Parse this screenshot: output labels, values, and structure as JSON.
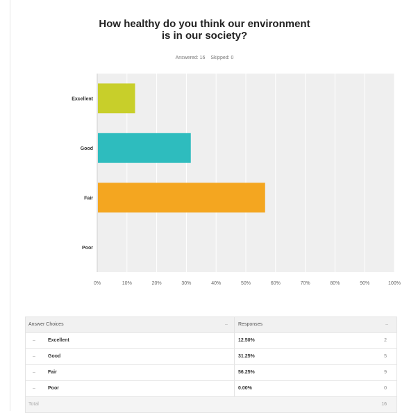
{
  "question": {
    "title_line1": "How healthy do you think our environment",
    "title_line2": "is in our society?",
    "answered": "Answered: 16",
    "skipped": "Skipped: 0"
  },
  "chart_data": {
    "type": "bar",
    "orientation": "horizontal",
    "categories": [
      "Excellent",
      "Good",
      "Fair",
      "Poor"
    ],
    "values": [
      12.5,
      31.25,
      56.25,
      0
    ],
    "xlim": [
      0,
      100
    ],
    "xticks": [
      "0%",
      "10%",
      "20%",
      "30%",
      "40%",
      "50%",
      "60%",
      "70%",
      "80%",
      "90%",
      "100%"
    ],
    "colors": [
      "#c8cf2a",
      "#2ebcbe",
      "#f4a620",
      "#aaaaaa"
    ],
    "grid": true,
    "plot_background": "#efefef"
  },
  "table": {
    "header_choice": "Answer Choices",
    "header_responses": "Responses",
    "sort_glyph": "–",
    "bullet_glyph": "–",
    "rows": [
      {
        "choice": "Excellent",
        "percent": "12.50%",
        "count": "2"
      },
      {
        "choice": "Good",
        "percent": "31.25%",
        "count": "5"
      },
      {
        "choice": "Fair",
        "percent": "56.25%",
        "count": "9"
      },
      {
        "choice": "Poor",
        "percent": "0.00%",
        "count": "0"
      }
    ],
    "total_label": "Total",
    "total_count": "16"
  }
}
